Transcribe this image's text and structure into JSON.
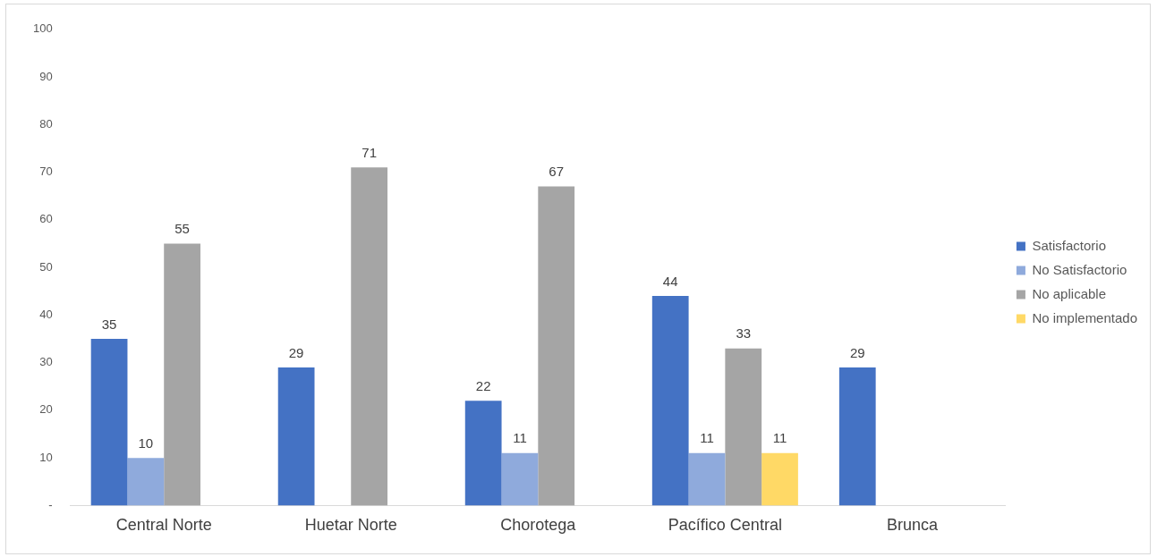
{
  "chart_data": {
    "type": "bar",
    "categories": [
      "Central Norte",
      "Huetar Norte",
      "Chorotega",
      "Pacífico Central",
      "Brunca"
    ],
    "series": [
      {
        "name": "Satisfactorio",
        "color": "#4472c4",
        "values": [
          35,
          29,
          22,
          44,
          29
        ]
      },
      {
        "name": "No Satisfactorio",
        "color": "#8faadc",
        "values": [
          10,
          null,
          11,
          11,
          null
        ]
      },
      {
        "name": "No aplicable",
        "color": "#a5a5a5",
        "values": [
          55,
          71,
          67,
          33,
          null
        ]
      },
      {
        "name": "No implementado",
        "color": "#ffd966",
        "values": [
          null,
          null,
          null,
          11,
          null
        ]
      }
    ],
    "ylim": [
      0,
      100
    ],
    "yticks": [
      {
        "value": 0,
        "label": "-"
      },
      10,
      20,
      30,
      40,
      50,
      60,
      70,
      80,
      90,
      100
    ],
    "grid": false,
    "legend": "right",
    "data_labels": true
  }
}
